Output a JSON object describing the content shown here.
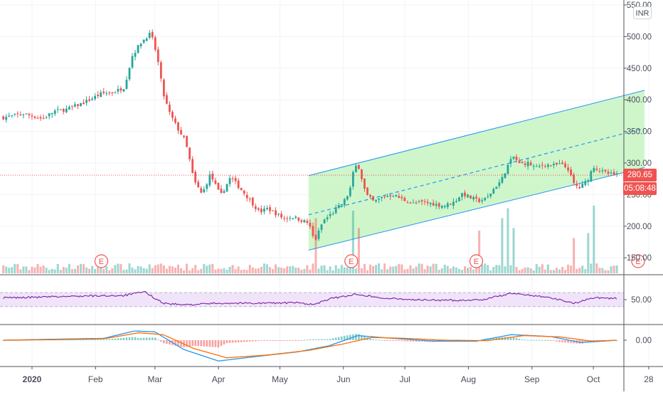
{
  "currency": "INR",
  "last_price_label": "280.65",
  "countdown_label": "05:08:48",
  "earnings_marker_label": "E",
  "colors": {
    "up": "#26a69a",
    "down": "#ef5350",
    "channel_fill": "#ccf5c8",
    "channel_line": "#2196f3",
    "rsi": "#7b1fa2",
    "rsi_band": "#f0e4fa",
    "macd": "#2196f3",
    "signal": "#ff6d00",
    "grid": "#f0f3fa",
    "text": "#4a4e5a"
  },
  "chart_data": [
    {
      "type": "candlestick",
      "title": "",
      "y_axis": {
        "ticks": [
          "550.00",
          "500.00",
          "450.00",
          "400.00",
          "350.00",
          "300.00",
          "250.00",
          "200.00",
          "150.00"
        ],
        "range": [
          120,
          555
        ]
      },
      "x_axis": {
        "ticks": [
          "2020",
          "Feb",
          "Mar",
          "Apr",
          "May",
          "Jun",
          "Jul",
          "Aug",
          "Sep",
          "Oct",
          "28"
        ]
      },
      "last_price": 280.65,
      "close_path": [
        [
          "2019-12-18",
          372
        ],
        [
          "2019-12-28",
          378
        ],
        [
          "2020-01-06",
          370
        ],
        [
          "2020-01-12",
          382
        ],
        [
          "2020-01-18",
          385
        ],
        [
          "2020-01-26",
          395
        ],
        [
          "2020-02-04",
          410
        ],
        [
          "2020-02-10",
          412
        ],
        [
          "2020-02-15",
          420
        ],
        [
          "2020-02-19",
          470
        ],
        [
          "2020-02-23",
          490
        ],
        [
          "2020-02-26",
          500
        ],
        [
          "2020-02-28",
          505
        ],
        [
          "2020-03-02",
          470
        ],
        [
          "2020-03-05",
          410
        ],
        [
          "2020-03-08",
          380
        ],
        [
          "2020-03-12",
          355
        ],
        [
          "2020-03-15",
          340
        ],
        [
          "2020-03-17",
          320
        ],
        [
          "2020-03-20",
          272
        ],
        [
          "2020-03-24",
          250
        ],
        [
          "2020-03-28",
          282
        ],
        [
          "2020-04-02",
          248
        ],
        [
          "2020-04-07",
          278
        ],
        [
          "2020-04-11",
          262
        ],
        [
          "2020-04-16",
          243
        ],
        [
          "2020-04-21",
          222
        ],
        [
          "2020-04-25",
          228
        ],
        [
          "2020-04-29",
          220
        ],
        [
          "2020-05-03",
          212
        ],
        [
          "2020-05-07",
          215
        ],
        [
          "2020-05-11",
          210
        ],
        [
          "2020-05-15",
          205
        ],
        [
          "2020-05-18",
          175
        ],
        [
          "2020-05-22",
          208
        ],
        [
          "2020-05-27",
          222
        ],
        [
          "2020-06-01",
          238
        ],
        [
          "2020-06-04",
          255
        ],
        [
          "2020-06-06",
          288
        ],
        [
          "2020-06-08",
          300
        ],
        [
          "2020-06-12",
          250
        ],
        [
          "2020-06-16",
          238
        ],
        [
          "2020-06-20",
          246
        ],
        [
          "2020-06-25",
          250
        ],
        [
          "2020-06-30",
          242
        ],
        [
          "2020-07-05",
          236
        ],
        [
          "2020-07-10",
          238
        ],
        [
          "2020-07-15",
          235
        ],
        [
          "2020-07-20",
          232
        ],
        [
          "2020-07-25",
          238
        ],
        [
          "2020-07-29",
          252
        ],
        [
          "2020-08-02",
          245
        ],
        [
          "2020-08-06",
          240
        ],
        [
          "2020-08-10",
          244
        ],
        [
          "2020-08-14",
          262
        ],
        [
          "2020-08-17",
          272
        ],
        [
          "2020-08-20",
          295
        ],
        [
          "2020-08-23",
          310
        ],
        [
          "2020-08-26",
          298
        ],
        [
          "2020-08-30",
          300
        ],
        [
          "2020-09-03",
          292
        ],
        [
          "2020-09-07",
          298
        ],
        [
          "2020-09-11",
          296
        ],
        [
          "2020-09-15",
          298
        ],
        [
          "2020-09-19",
          290
        ],
        [
          "2020-09-21",
          268
        ],
        [
          "2020-09-24",
          260
        ],
        [
          "2020-09-28",
          272
        ],
        [
          "2020-10-01",
          295
        ],
        [
          "2020-10-04",
          288
        ],
        [
          "2020-10-08",
          283
        ],
        [
          "2020-10-13",
          280.65
        ]
      ],
      "channel": {
        "start": "2020-05-15",
        "end": "2020-10-26",
        "lower": [
          162,
          293
        ],
        "median": [
          218,
          355
        ],
        "upper": [
          280,
          415
        ]
      },
      "earnings_dates": [
        "2020-02-08",
        "2020-06-09",
        "2020-08-09",
        "2020-10-27"
      ],
      "volume_spikes": [
        [
          "2020-05-18",
          0.75
        ],
        [
          "2020-06-06",
          0.9
        ],
        [
          "2020-06-09",
          0.55
        ],
        [
          "2020-08-06",
          0.5
        ],
        [
          "2020-08-17",
          0.75
        ],
        [
          "2020-08-20",
          0.95
        ],
        [
          "2020-08-23",
          0.55
        ],
        [
          "2020-09-21",
          0.35
        ],
        [
          "2020-09-28",
          0.45
        ],
        [
          "2020-10-01",
          1.0
        ]
      ]
    },
    {
      "type": "line",
      "indicator": "RSI",
      "y_axis": {
        "ticks": [
          "50.00"
        ],
        "range": [
          10,
          90
        ]
      },
      "bands": [
        30,
        70
      ],
      "series": [
        {
          "values_path": [
            [
              "2019-12-18",
              55
            ],
            [
              "2020-01-05",
              57
            ],
            [
              "2020-01-25",
              60
            ],
            [
              "2020-02-15",
              62
            ],
            [
              "2020-02-25",
              72
            ],
            [
              "2020-03-05",
              40
            ],
            [
              "2020-03-15",
              35
            ],
            [
              "2020-04-01",
              40
            ],
            [
              "2020-04-20",
              40
            ],
            [
              "2020-05-10",
              41
            ],
            [
              "2020-05-18",
              36
            ],
            [
              "2020-05-25",
              52
            ],
            [
              "2020-06-08",
              66
            ],
            [
              "2020-06-20",
              54
            ],
            [
              "2020-07-10",
              49
            ],
            [
              "2020-07-25",
              48
            ],
            [
              "2020-08-08",
              50
            ],
            [
              "2020-08-22",
              68
            ],
            [
              "2020-09-08",
              58
            ],
            [
              "2020-09-22",
              40
            ],
            [
              "2020-10-01",
              56
            ],
            [
              "2020-10-13",
              53
            ]
          ]
        }
      ]
    },
    {
      "type": "line",
      "indicator": "MACD",
      "y_axis": {
        "ticks": [
          "0.00"
        ],
        "range": [
          -60,
          40
        ]
      },
      "series": [
        {
          "values_path": [
            [
              "2019-12-18",
              0
            ],
            [
              "2020-01-10",
              2
            ],
            [
              "2020-02-05",
              4
            ],
            [
              "2020-02-20",
              20
            ],
            [
              "2020-03-01",
              18
            ],
            [
              "2020-03-15",
              -20
            ],
            [
              "2020-04-01",
              -45
            ],
            [
              "2020-04-20",
              -35
            ],
            [
              "2020-05-10",
              -25
            ],
            [
              "2020-05-25",
              -12
            ],
            [
              "2020-06-08",
              10
            ],
            [
              "2020-06-25",
              4
            ],
            [
              "2020-07-15",
              -2
            ],
            [
              "2020-08-05",
              -2
            ],
            [
              "2020-08-22",
              12
            ],
            [
              "2020-09-10",
              8
            ],
            [
              "2020-09-25",
              -5
            ],
            [
              "2020-10-13",
              0
            ]
          ]
        },
        {
          "values_path": [
            [
              "2019-12-18",
              0
            ],
            [
              "2020-01-10",
              1
            ],
            [
              "2020-02-05",
              3
            ],
            [
              "2020-02-22",
              16
            ],
            [
              "2020-03-05",
              12
            ],
            [
              "2020-03-20",
              -18
            ],
            [
              "2020-04-05",
              -38
            ],
            [
              "2020-04-25",
              -32
            ],
            [
              "2020-05-15",
              -22
            ],
            [
              "2020-06-01",
              -8
            ],
            [
              "2020-06-15",
              6
            ],
            [
              "2020-07-01",
              4
            ],
            [
              "2020-07-20",
              0
            ],
            [
              "2020-08-10",
              -1
            ],
            [
              "2020-08-28",
              10
            ],
            [
              "2020-09-15",
              7
            ],
            [
              "2020-09-30",
              -2
            ],
            [
              "2020-10-13",
              0
            ]
          ]
        }
      ]
    }
  ]
}
